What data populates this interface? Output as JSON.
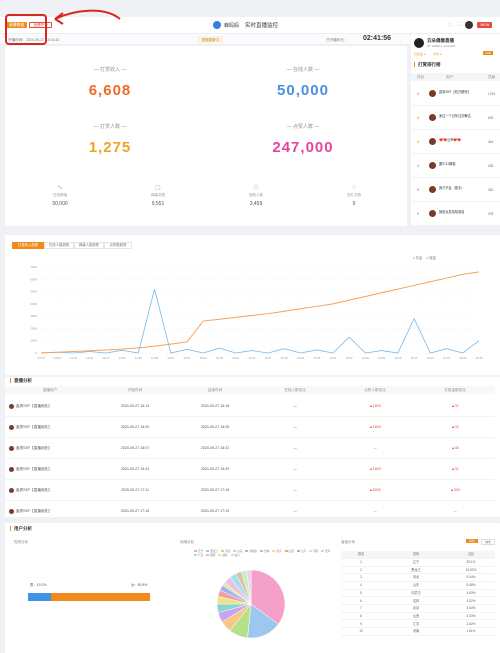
{
  "header": {
    "tag_left": "直播数据",
    "tag_right": "直播中 ▾",
    "brand": "蝉妈妈",
    "title": "实时直播监控",
    "badge": "NEW"
  },
  "subbar": {
    "start_label": "开播时间：",
    "start_time": "2020-09-27 14:03:43",
    "center_note": "数据更新中",
    "duration_label": "已开播时长：",
    "duration": "02:41:56"
  },
  "kpis": [
    {
      "label": "— 打赏收入 —",
      "value": "6,608",
      "color": "#f06a28"
    },
    {
      "label": "— 在线人数 —",
      "value": "50,000",
      "color": "#4a8fe3"
    },
    {
      "label": "— 打赏人数 —",
      "value": "1,275",
      "color": "#f0a41c"
    },
    {
      "label": "— 点赞人数 —",
      "value": "247,000",
      "color": "#e2469e"
    }
  ],
  "minis": [
    {
      "icon": "trend-icon",
      "label": "在线峰值",
      "value": "50,000"
    },
    {
      "icon": "comment-icon",
      "label": "弹幕总数",
      "value": "9,551"
    },
    {
      "icon": "user-plus-icon",
      "label": "涨粉人数",
      "value": "3,459"
    },
    {
      "icon": "gift-icon",
      "label": "送礼次数",
      "value": "6"
    }
  ],
  "streamer": {
    "name": "云朵偶像直播",
    "id": "ID: 99880 ▸ cloud###",
    "btn_follow": "已关注 ▸",
    "btn_share": "分享 ▸",
    "rank_tag": "TOP"
  },
  "rank": {
    "title": "打赏排行榜",
    "headers": [
      "排名",
      "用户",
      "贡献"
    ],
    "rows": [
      {
        "rank": "1",
        "name": "鑫男SEF【双方都死】",
        "value": "1794"
      },
      {
        "rank": "2",
        "name": "卖住一个过年过初舞吉",
        "value": "678"
      },
      {
        "rank": "3",
        "name": "❤️❤️云声❤️❤️",
        "value": "444"
      },
      {
        "rank": "4",
        "name": "图9711蝉猫",
        "value": "433"
      },
      {
        "rank": "5",
        "name": "我才不会（散手）",
        "value": "342"
      },
      {
        "rank": "6",
        "name": "她射女发哈哈哈哈",
        "value": "378"
      }
    ]
  },
  "trend": {
    "tabs": [
      "打赏收入趋势",
      "在线人数趋势",
      "弹幕人数趋势",
      "点赞数趋势"
    ],
    "legend": [
      "总量",
      "增量"
    ]
  },
  "chart_data": {
    "type": "line",
    "x_labels": [
      "14:03",
      "14:09",
      "14:15",
      "14:21",
      "14:27",
      "14:33",
      "14:39",
      "14:45",
      "14:51",
      "14:57",
      "15:03",
      "15:09",
      "15:15",
      "15:21",
      "15:27",
      "15:33",
      "15:39",
      "15:45",
      "15:51",
      "15:57",
      "16:03",
      "16:09",
      "16:15",
      "16:21",
      "16:27",
      "16:33",
      "16:39",
      "16:45"
    ],
    "yticks": [
      "7000",
      "6000",
      "5000",
      "4000",
      "3000",
      "2000",
      "1000",
      "0"
    ],
    "ylim": [
      0,
      7000
    ],
    "series": [
      {
        "name": "总量",
        "color": "#f5a15a",
        "values": [
          10,
          60,
          120,
          180,
          240,
          320,
          420,
          560,
          720,
          900,
          2600,
          2750,
          2900,
          3050,
          3200,
          3400,
          3600,
          3800,
          4000,
          4300,
          4600,
          4900,
          5200,
          5500,
          5800,
          6100,
          6400,
          6600
        ]
      },
      {
        "name": "增量",
        "color": "#78b9ec",
        "values": [
          0,
          60,
          0,
          120,
          0,
          220,
          0,
          5200,
          0,
          300,
          0,
          400,
          0,
          200,
          0,
          350,
          0,
          250,
          0,
          1300,
          0,
          200,
          0,
          2800,
          0,
          350,
          0,
          1000
        ]
      }
    ]
  },
  "detail": {
    "title": "直播分析",
    "headers": [
      "直播用户",
      "开始时间",
      "结束时间",
      "在线人数变化",
      "点赞人数变化",
      "打赏金额变化"
    ],
    "rows": [
      {
        "user": "鑫男SEF【直播用处】",
        "start": "2020-09-27 16:13",
        "end": "2020-09-27 16:18",
        "online": "—",
        "likes": "▲1800",
        "gift": "▲31"
      },
      {
        "user": "鑫男SEF【直播用处】",
        "start": "2020-09-27 16:20",
        "end": "2020-09-27 16:25",
        "online": "—",
        "likes": "▲1800",
        "gift": "▲33"
      },
      {
        "user": "鑫男SEF【直播用处】",
        "start": "2020-09-27 16:07",
        "end": "2020-09-27 16:22",
        "online": "—",
        "likes": "—",
        "gift": "▲36"
      },
      {
        "user": "鑫男SEF【直播用处】",
        "start": "2020-09-27 16:24",
        "end": "2020-09-27 16:29",
        "online": "—",
        "likes": "▲1800",
        "gift": "▲31"
      },
      {
        "user": "鑫男SEF【直播用处】",
        "start": "2020-09-27 17:11",
        "end": "2020-09-27 17:16",
        "online": "—",
        "likes": "▲6000",
        "gift": "▲393"
      },
      {
        "user": "鑫男SEF【直播用处】",
        "start": "2020-09-27 17:18",
        "end": "2020-09-27 17:19",
        "online": "—",
        "likes": "—",
        "gift": "—"
      }
    ]
  },
  "users": {
    "title": "用户分析",
    "gender_title": "性别分析",
    "female": "男：19.2%",
    "male": "女：80.8%",
    "female_pct": 19.2,
    "region_title": "地域分析",
    "geo_title": "省级分布",
    "geo_tabs": [
      "省份",
      "城市"
    ],
    "geo_headers": [
      "排名",
      "省份",
      "占比"
    ],
    "geo_rows": [
      {
        "rank": "1",
        "name": "辽宁",
        "pct": "35.1%"
      },
      {
        "rank": "2",
        "name": "黑龙江",
        "pct": "16.52%"
      },
      {
        "rank": "3",
        "name": "河北",
        "pct": "9.04%"
      },
      {
        "rank": "4",
        "name": "山东",
        "pct": "5.48%"
      },
      {
        "rank": "5",
        "name": "内蒙古",
        "pct": "4.83%"
      },
      {
        "rank": "6",
        "name": "吉林",
        "pct": "4.02%"
      },
      {
        "rank": "7",
        "name": "北京",
        "pct": "3.63%"
      },
      {
        "rank": "8",
        "name": "山西",
        "pct": "3.03%"
      },
      {
        "rank": "9",
        "name": "江苏",
        "pct": "2.62%"
      },
      {
        "rank": "10",
        "name": "河南",
        "pct": "1.61%"
      }
    ],
    "pie_legend": [
      "辽宁",
      "黑龙江",
      "河北",
      "山东",
      "内蒙古",
      "吉林",
      "北京",
      "山西",
      "江苏",
      "河南",
      "天津",
      "广东",
      "陕西",
      "湖北",
      "四川"
    ],
    "pie_values": [
      35.1,
      16.52,
      9.04,
      5.48,
      4.83,
      4.02,
      3.63,
      3.03,
      2.62,
      1.61,
      3.5,
      3.2,
      2.8,
      2.5,
      2.1
    ]
  }
}
